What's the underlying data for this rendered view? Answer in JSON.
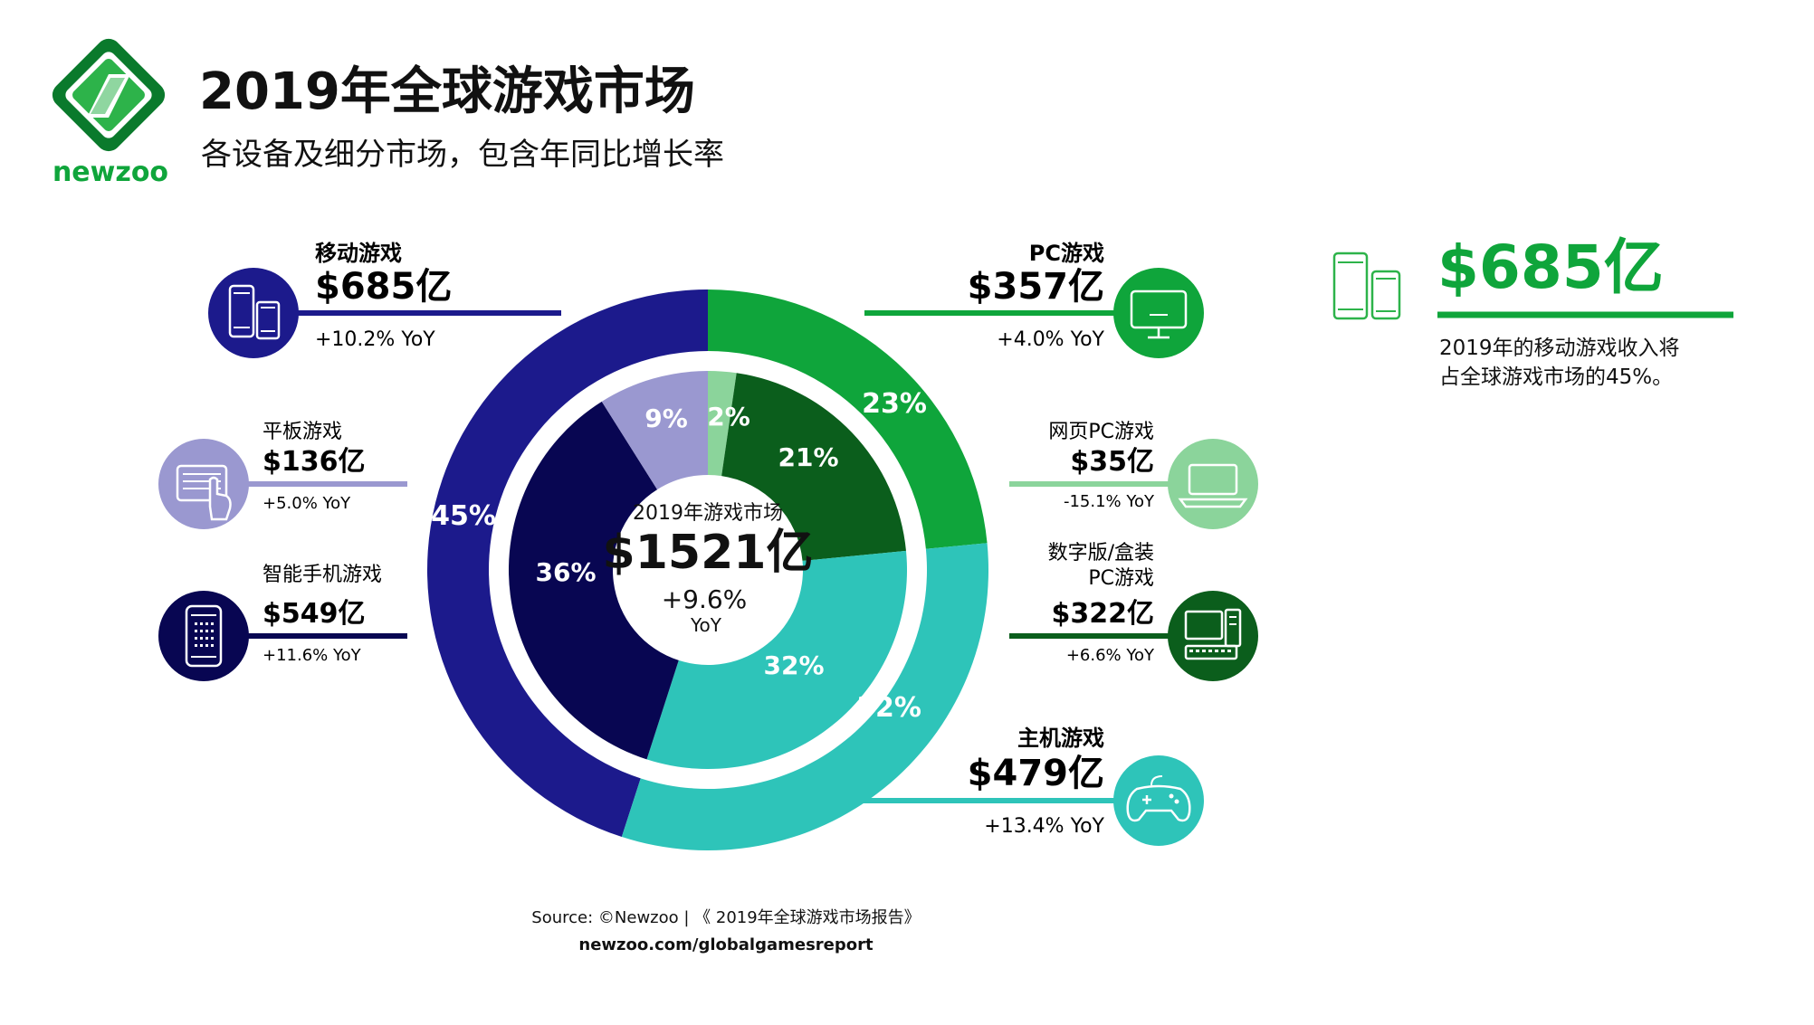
{
  "brand": {
    "name": "newzoo",
    "colors": {
      "green_dark": "#0a7a2c",
      "green": "#2db34a",
      "green_light": "#8fd6a0"
    }
  },
  "header": {
    "title": "2019年全球游戏市场",
    "subtitle": "各设备及细分市场，包含年同比增长率"
  },
  "center": {
    "label": "2019年游戏市场",
    "value": "$1521亿",
    "growth": "+9.6%",
    "growth_unit": "YoY"
  },
  "segments": {
    "mobile": {
      "label": "移动游戏",
      "value": "$685亿",
      "growth": "+10.2% YoY",
      "percent": "45%",
      "icon": "devices-icon",
      "color": "#1c1a8c"
    },
    "pc": {
      "label": "PC游戏",
      "value": "$357亿",
      "growth": "+4.0% YoY",
      "percent": "23%",
      "icon": "monitor-icon",
      "color": "#0fa53b"
    },
    "console": {
      "label": "主机游戏",
      "value": "$479亿",
      "growth": "+13.4% YoY",
      "percent": "32%",
      "icon": "gamepad-icon",
      "color": "#2ec4b9"
    },
    "tablet": {
      "label": "平板游戏",
      "value": "$136亿",
      "growth": "+5.0% YoY",
      "percent": "9%",
      "icon": "tablet-icon",
      "color": "#9a98d0"
    },
    "smartphone": {
      "label": "智能手机游戏",
      "value": "$549亿",
      "growth": "+11.6% YoY",
      "percent": "36%",
      "icon": "smartphone-icon",
      "color": "#080652"
    },
    "browser_pc": {
      "label": "网页PC游戏",
      "value": "$35亿",
      "growth": "-15.1% YoY",
      "percent": "2%",
      "icon": "laptop-icon",
      "color": "#8bd49b"
    },
    "boxed_pc": {
      "label_line1": "数字版/盒装",
      "label_line2": "PC游戏",
      "value": "$322亿",
      "growth": "+6.6% YoY",
      "percent": "21%",
      "icon": "desktop-pc-icon",
      "color": "#0b5e1c"
    },
    "console_inner": {
      "percent": "32%"
    }
  },
  "chart_data": {
    "type": "pie",
    "title": "2019年游戏市场",
    "total": 1521,
    "unit": "亿美元",
    "outer_ring": [
      {
        "name": "移动游戏",
        "value": 685,
        "percent": 45,
        "growth_yoy": 10.2
      },
      {
        "name": "PC游戏",
        "value": 357,
        "percent": 23,
        "growth_yoy": 4.0
      },
      {
        "name": "主机游戏",
        "value": 479,
        "percent": 32,
        "growth_yoy": 13.4
      }
    ],
    "inner_ring": [
      {
        "name": "网页PC游戏",
        "value": 35,
        "percent": 2,
        "growth_yoy": -15.1
      },
      {
        "name": "数字版/盒装PC游戏",
        "value": 322,
        "percent": 21,
        "growth_yoy": 6.6
      },
      {
        "name": "主机游戏",
        "value": 479,
        "percent": 32,
        "growth_yoy": 13.4
      },
      {
        "name": "智能手机游戏",
        "value": 549,
        "percent": 36,
        "growth_yoy": 11.6
      },
      {
        "name": "平板游戏",
        "value": 136,
        "percent": 9,
        "growth_yoy": 5.0
      }
    ]
  },
  "callout": {
    "value": "$685亿",
    "text_line1": "2019年的移动游戏收入将",
    "text_line2": "占全球游戏市场的45%。"
  },
  "footer": {
    "source": "Source: ©Newzoo | 《 2019年全球游戏市场报告》",
    "url": "newzoo.com/globalgamesreport"
  }
}
